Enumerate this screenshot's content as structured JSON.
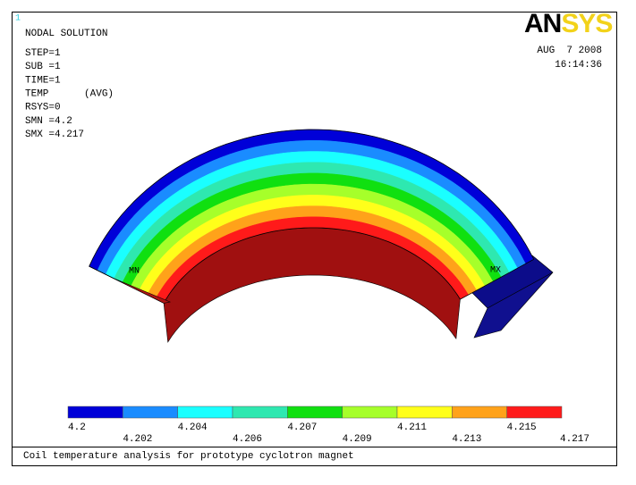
{
  "window_number": "1",
  "info": {
    "title": "NODAL SOLUTION",
    "lines": [
      "STEP=1",
      "SUB =1",
      "TIME=1",
      "TEMP      (AVG)",
      "RSYS=0",
      "SMN =4.2",
      "SMX =4.217"
    ]
  },
  "logo": {
    "dark": "AN",
    "light": "SYS"
  },
  "date": "AUG  7 2008",
  "time": "16:14:36",
  "markers": {
    "min": "MN",
    "max": "MX"
  },
  "legend": {
    "levels": [
      "4.2",
      "4.202",
      "4.204",
      "4.206",
      "4.207",
      "4.209",
      "4.211",
      "4.213",
      "4.215",
      "4.217"
    ],
    "colors": [
      "#0000d8",
      "#1a8cff",
      "#1affff",
      "#2ee8b0",
      "#10e010",
      "#a6ff2a",
      "#ffff1a",
      "#ffa21a",
      "#ff1a1a"
    ]
  },
  "caption": "Coil temperature analysis for prototype cyclotron magnet"
}
